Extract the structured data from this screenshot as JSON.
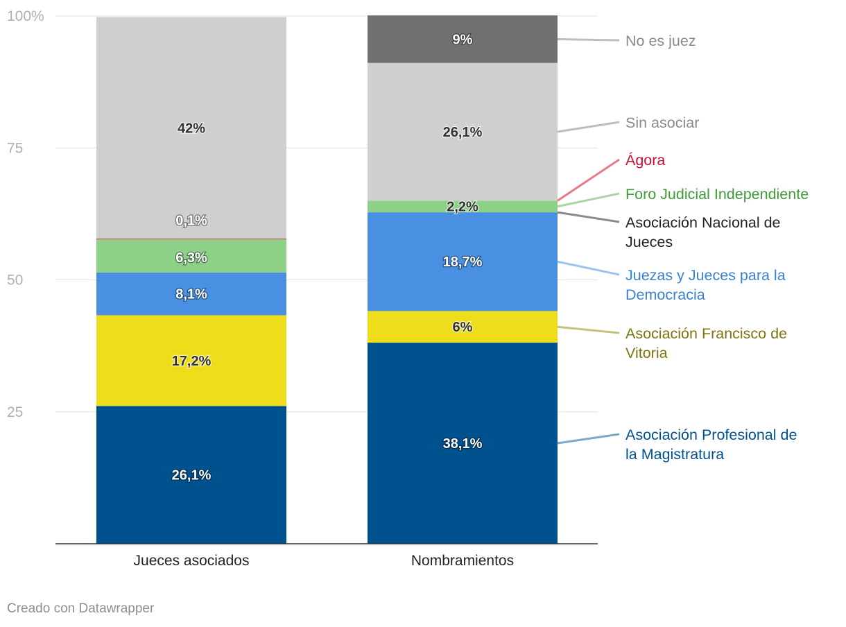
{
  "chart_data": {
    "type": "bar",
    "stacked": true,
    "categories": [
      "Jueces asociados",
      "Nombramientos"
    ],
    "ylim": [
      0,
      100
    ],
    "yticks": [
      {
        "value": 100,
        "label": "100%"
      },
      {
        "value": 75,
        "label": "75"
      },
      {
        "value": 50,
        "label": "50"
      },
      {
        "value": 25,
        "label": "25"
      }
    ],
    "grid": true,
    "legend_placement": "right, inline labels",
    "series": [
      {
        "name": "Asociación Profesional de la Magistratura",
        "color": "#00528f",
        "label_color": "#00528f",
        "values": [
          26.1,
          38.1
        ],
        "labels": [
          "26,1%",
          "38,1%"
        ],
        "label_text_color": [
          "#ffffff",
          "#ffffff"
        ]
      },
      {
        "name": "Asociación Francisco de Vitoria",
        "color": "#eedd1b",
        "label_color": "#7e750f",
        "values": [
          17.2,
          6
        ],
        "labels": [
          "17,2%",
          "6%"
        ],
        "label_text_color": [
          "#333333",
          "#333333"
        ]
      },
      {
        "name": "Juezas y Jueces para la Democracia",
        "color": "#4a90e2",
        "label_color": "#3a82d0",
        "values": [
          8.1,
          18.7
        ],
        "labels": [
          "8,1%",
          "18,7%"
        ],
        "label_text_color": [
          "#ffffff",
          "#ffffff"
        ]
      },
      {
        "name": "Asociación Nacional de Jueces",
        "color": "#333333",
        "label_color": "#222222",
        "values": [
          0,
          0
        ],
        "labels": [
          "",
          ""
        ],
        "label_text_color": [
          "#ffffff",
          "#ffffff"
        ]
      },
      {
        "name": "Foro Judicial Independiente",
        "color": "#8dd087",
        "label_color": "#3f9a38",
        "values": [
          6.3,
          2.2
        ],
        "labels": [
          "6,3%",
          "2,2%"
        ],
        "label_text_color": [
          "#ffffff",
          "#333333"
        ]
      },
      {
        "name": "Ágora",
        "color": "#c8102e",
        "label_color": "#c8102e",
        "values": [
          0.1,
          0
        ],
        "labels": [
          "0,1%",
          ""
        ],
        "label_text_color": [
          "#ffffff",
          "#ffffff"
        ]
      },
      {
        "name": "Sin asociar",
        "color": "#cfcfcf",
        "label_color": "#8a8a8a",
        "values": [
          42,
          26.1
        ],
        "labels": [
          "42%",
          "26,1%"
        ],
        "label_text_color": [
          "#333333",
          "#333333"
        ]
      },
      {
        "name": "No es juez",
        "color": "#707070",
        "label_color": "#8a8a8a",
        "values": [
          0,
          9
        ],
        "labels": [
          "",
          "9%"
        ],
        "label_text_color": [
          "#ffffff",
          "#ffffff"
        ]
      }
    ],
    "legend_lines": [
      "#7fa7c6",
      "#c4c080",
      "#9cc3ea",
      "#8a8a8a",
      "#a8d5a2",
      "#e57a8a",
      "#bdbdbd",
      "#bdbdbd"
    ]
  },
  "footer": {
    "credit": "Creado con Datawrapper"
  }
}
